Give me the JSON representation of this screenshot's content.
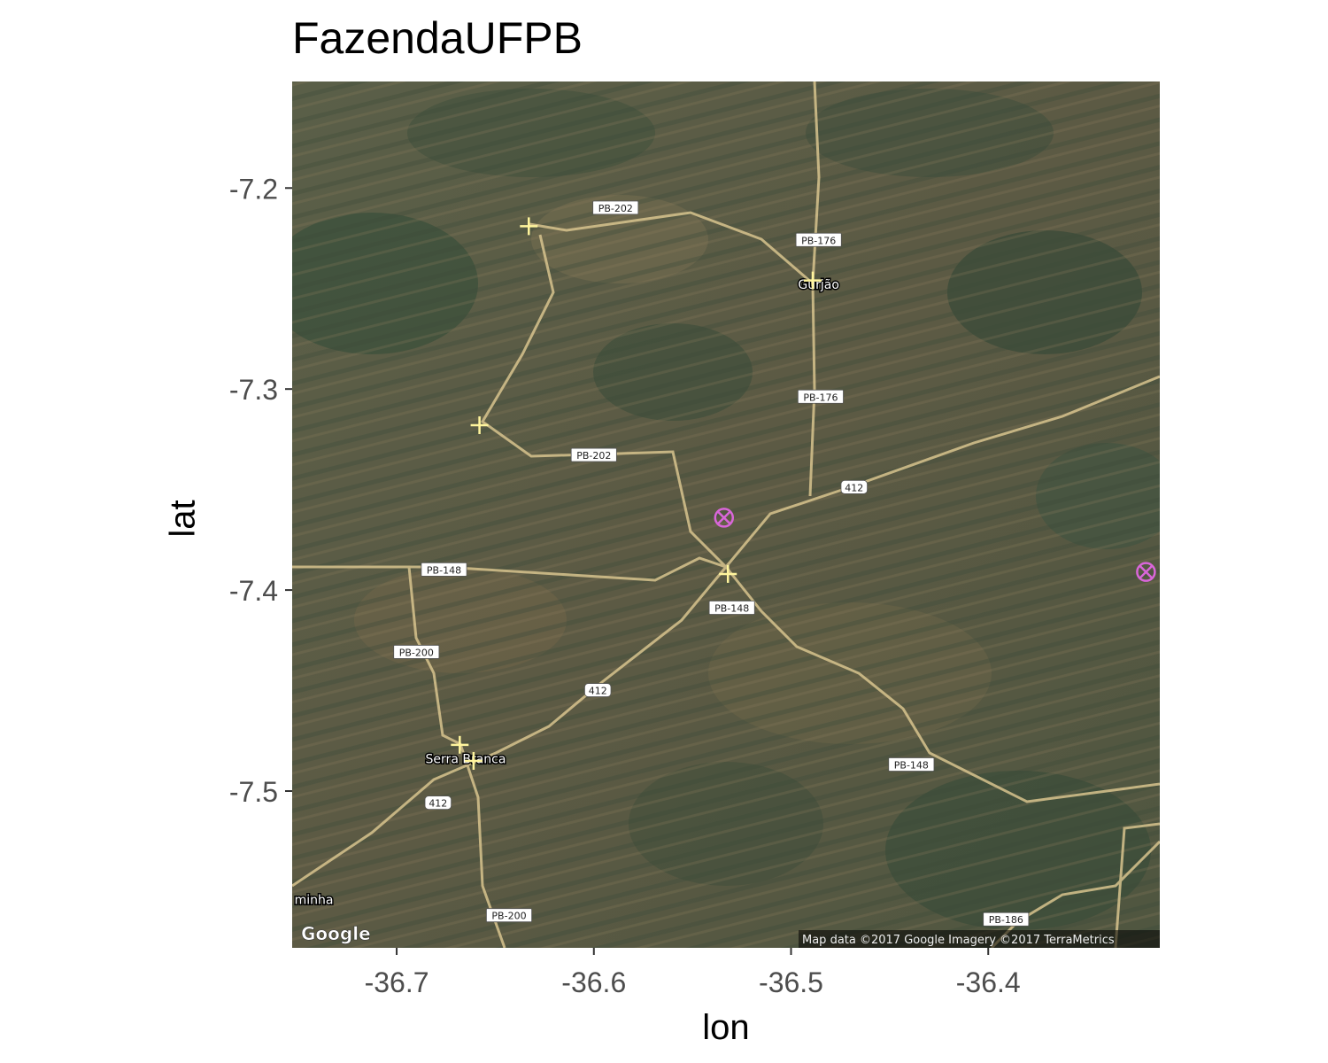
{
  "title": "FazendaUFPB",
  "chart_data": {
    "type": "scatter",
    "basemap": "satellite",
    "title": "FazendaUFPB",
    "xlabel": "lon",
    "ylabel": "lat",
    "xlim": [
      -36.753,
      -36.313
    ],
    "ylim": [
      -7.578,
      -7.147
    ],
    "x_ticks": [
      -36.7,
      -36.6,
      -36.5,
      -36.4
    ],
    "x_tick_labels": [
      "-36.7",
      "-36.6",
      "-36.5",
      "-36.4"
    ],
    "y_ticks": [
      -7.2,
      -7.3,
      -7.4,
      -7.5
    ],
    "y_tick_labels": [
      "-7.2",
      "-7.3",
      "-7.4",
      "-7.5"
    ],
    "series": [
      {
        "marker": "plus",
        "color": "#fff59d",
        "points": [
          {
            "lon": -36.633,
            "lat": -7.219
          },
          {
            "lon": -36.658,
            "lat": -7.318
          },
          {
            "lon": -36.489,
            "lat": -7.246
          },
          {
            "lon": -36.532,
            "lat": -7.392
          },
          {
            "lon": -36.668,
            "lat": -7.477
          },
          {
            "lon": -36.661,
            "lat": -7.485
          }
        ]
      },
      {
        "marker": "circle-x",
        "color": "#d966d9",
        "points": [
          {
            "lon": -36.534,
            "lat": -7.364
          },
          {
            "lon": -36.32,
            "lat": -7.391
          }
        ]
      }
    ],
    "roads": [
      {
        "label": "PB-202",
        "lon": -36.589,
        "lat": -7.21
      },
      {
        "label": "PB-176",
        "lon": -36.486,
        "lat": -7.226
      },
      {
        "label": "PB-176",
        "lon": -36.485,
        "lat": -7.304
      },
      {
        "label": "PB-202",
        "lon": -36.6,
        "lat": -7.333
      },
      {
        "label": "412",
        "lon": -36.468,
        "lat": -7.349
      },
      {
        "label": "PB-148",
        "lon": -36.676,
        "lat": -7.39
      },
      {
        "label": "PB-148",
        "lon": -36.53,
        "lat": -7.409
      },
      {
        "label": "PB-200",
        "lon": -36.69,
        "lat": -7.431
      },
      {
        "label": "412",
        "lon": -36.598,
        "lat": -7.45
      },
      {
        "label": "412",
        "lon": -36.679,
        "lat": -7.506
      },
      {
        "label": "PB-148",
        "lon": -36.439,
        "lat": -7.487
      },
      {
        "label": "PB-200",
        "lon": -36.643,
        "lat": -7.562
      },
      {
        "label": "PB-186",
        "lon": -36.391,
        "lat": -7.564
      }
    ],
    "towns": [
      {
        "label": "Gurjão",
        "lon": -36.486,
        "lat": -7.248
      },
      {
        "label": "Serra Branca",
        "lon": -36.665,
        "lat": -7.484
      },
      {
        "label": "minha",
        "lon": -36.742,
        "lat": -7.554
      }
    ],
    "attribution": "Map data ©2017 Google  Imagery ©2017 TerraMetrics",
    "logo": "Google"
  }
}
